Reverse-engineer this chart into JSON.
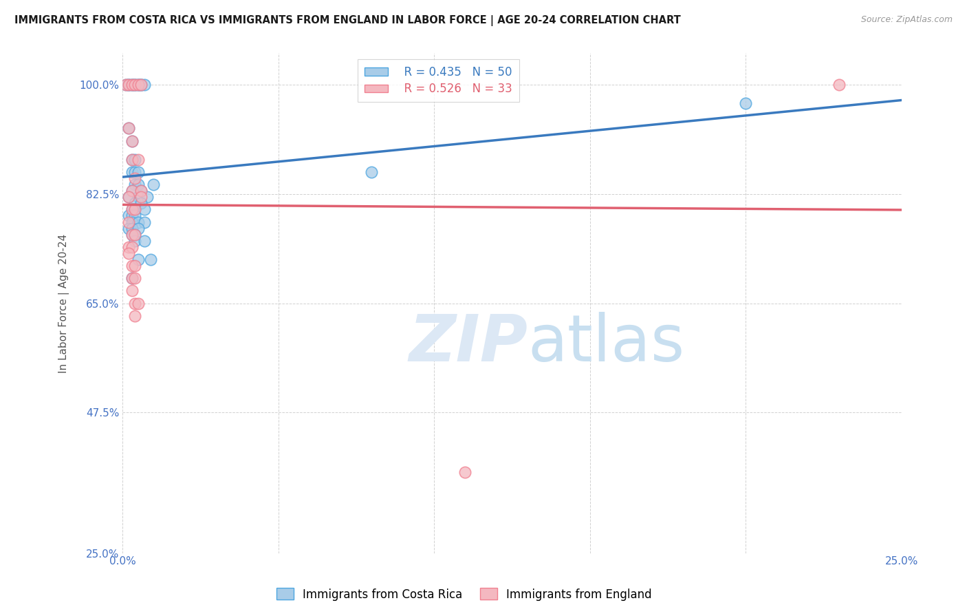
{
  "title": "IMMIGRANTS FROM COSTA RICA VS IMMIGRANTS FROM ENGLAND IN LABOR FORCE | AGE 20-24 CORRELATION CHART",
  "source": "Source: ZipAtlas.com",
  "ylabel": "In Labor Force | Age 20-24",
  "xlim": [
    0.0,
    0.25
  ],
  "ylim": [
    0.25,
    1.05
  ],
  "xtick_positions": [
    0.0,
    0.05,
    0.1,
    0.15,
    0.2,
    0.25
  ],
  "xticklabels": [
    "0.0%",
    "",
    "",
    "",
    "",
    "25.0%"
  ],
  "ytick_positions": [
    0.25,
    0.475,
    0.65,
    0.825,
    1.0
  ],
  "yticklabels": [
    "25.0%",
    "47.5%",
    "65.0%",
    "82.5%",
    "100.0%"
  ],
  "blue_R": 0.435,
  "blue_N": 50,
  "pink_R": 0.526,
  "pink_N": 33,
  "legend_label_blue": "Immigrants from Costa Rica",
  "legend_label_pink": "Immigrants from England",
  "blue_fill": "#a8cce8",
  "pink_fill": "#f4b8c0",
  "blue_edge": "#4da6e0",
  "pink_edge": "#f08090",
  "blue_line": "#3a7abf",
  "pink_line": "#e06070",
  "tick_color": "#4472c4",
  "watermark_color": "#dce8f5",
  "blue_dots": [
    [
      0.001,
      1.0
    ],
    [
      0.002,
      1.0
    ],
    [
      0.002,
      1.0
    ],
    [
      0.003,
      1.0
    ],
    [
      0.003,
      1.0
    ],
    [
      0.004,
      1.0
    ],
    [
      0.004,
      1.0
    ],
    [
      0.005,
      1.0
    ],
    [
      0.005,
      1.0
    ],
    [
      0.006,
      1.0
    ],
    [
      0.006,
      1.0
    ],
    [
      0.007,
      1.0
    ],
    [
      0.002,
      0.93
    ],
    [
      0.003,
      0.91
    ],
    [
      0.003,
      0.88
    ],
    [
      0.004,
      0.88
    ],
    [
      0.003,
      0.86
    ],
    [
      0.004,
      0.86
    ],
    [
      0.005,
      0.86
    ],
    [
      0.004,
      0.84
    ],
    [
      0.005,
      0.84
    ],
    [
      0.003,
      0.83
    ],
    [
      0.006,
      0.83
    ],
    [
      0.002,
      0.82
    ],
    [
      0.005,
      0.82
    ],
    [
      0.008,
      0.82
    ],
    [
      0.004,
      0.81
    ],
    [
      0.006,
      0.81
    ],
    [
      0.003,
      0.8
    ],
    [
      0.004,
      0.8
    ],
    [
      0.007,
      0.8
    ],
    [
      0.002,
      0.79
    ],
    [
      0.003,
      0.79
    ],
    [
      0.004,
      0.79
    ],
    [
      0.003,
      0.78
    ],
    [
      0.005,
      0.78
    ],
    [
      0.007,
      0.78
    ],
    [
      0.002,
      0.77
    ],
    [
      0.003,
      0.77
    ],
    [
      0.005,
      0.77
    ],
    [
      0.003,
      0.76
    ],
    [
      0.004,
      0.76
    ],
    [
      0.004,
      0.75
    ],
    [
      0.007,
      0.75
    ],
    [
      0.005,
      0.72
    ],
    [
      0.009,
      0.72
    ],
    [
      0.003,
      0.69
    ],
    [
      0.01,
      0.84
    ],
    [
      0.08,
      0.86
    ],
    [
      0.2,
      0.97
    ]
  ],
  "pink_dots": [
    [
      0.001,
      1.0
    ],
    [
      0.002,
      1.0
    ],
    [
      0.003,
      1.0
    ],
    [
      0.004,
      1.0
    ],
    [
      0.005,
      1.0
    ],
    [
      0.006,
      1.0
    ],
    [
      0.002,
      0.93
    ],
    [
      0.003,
      0.91
    ],
    [
      0.003,
      0.88
    ],
    [
      0.005,
      0.88
    ],
    [
      0.004,
      0.85
    ],
    [
      0.003,
      0.83
    ],
    [
      0.006,
      0.83
    ],
    [
      0.002,
      0.82
    ],
    [
      0.006,
      0.82
    ],
    [
      0.003,
      0.8
    ],
    [
      0.004,
      0.8
    ],
    [
      0.002,
      0.78
    ],
    [
      0.003,
      0.76
    ],
    [
      0.004,
      0.76
    ],
    [
      0.002,
      0.74
    ],
    [
      0.003,
      0.74
    ],
    [
      0.002,
      0.73
    ],
    [
      0.003,
      0.71
    ],
    [
      0.004,
      0.71
    ],
    [
      0.003,
      0.69
    ],
    [
      0.004,
      0.69
    ],
    [
      0.003,
      0.67
    ],
    [
      0.004,
      0.65
    ],
    [
      0.005,
      0.65
    ],
    [
      0.004,
      0.63
    ],
    [
      0.11,
      0.38
    ],
    [
      0.23,
      1.0
    ]
  ]
}
